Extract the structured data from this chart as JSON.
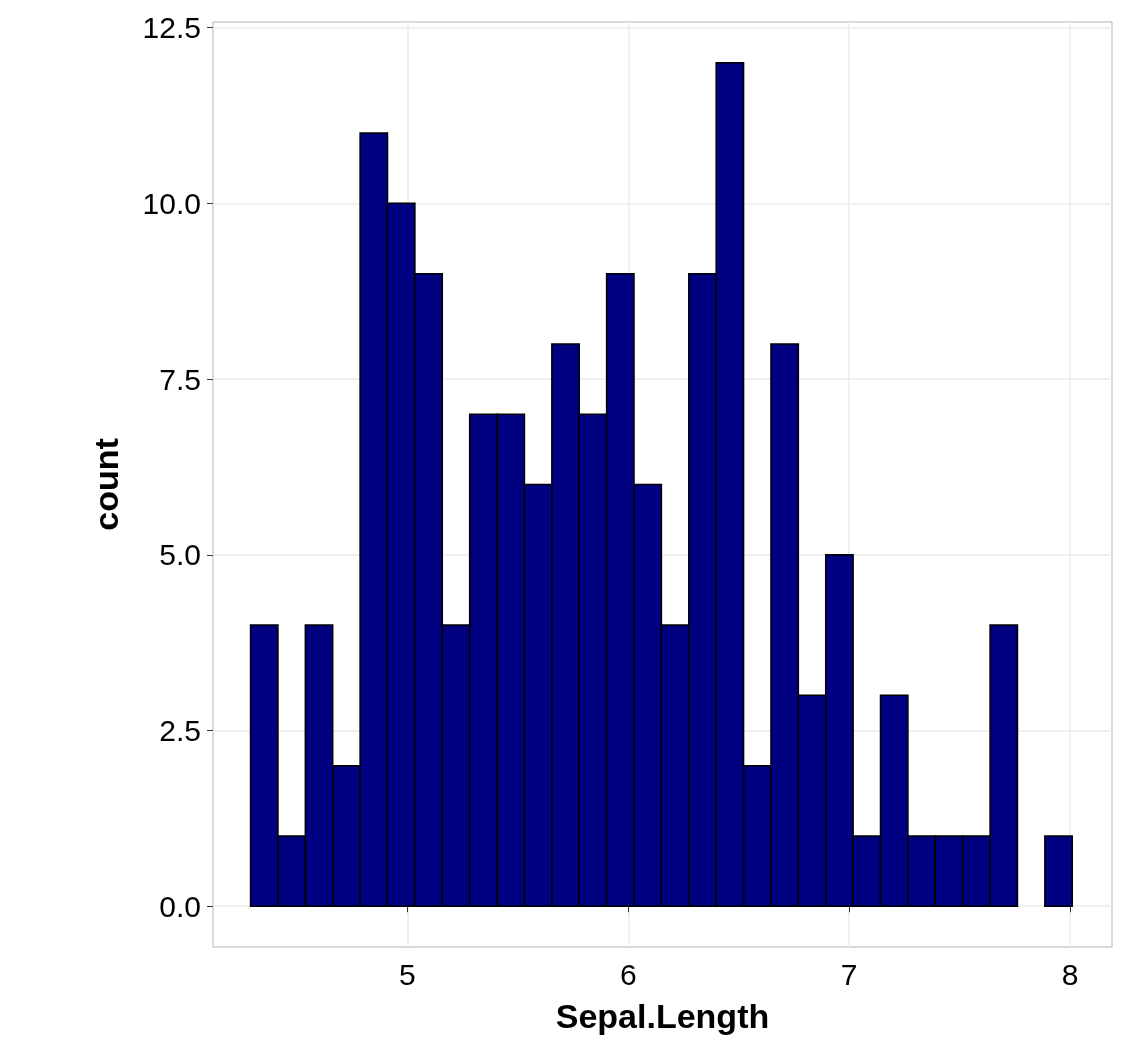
{
  "chart_data": {
    "type": "histogram",
    "xlabel": "Sepal.Length",
    "ylabel": "count",
    "color": "#000080",
    "bins": [
      4.29,
      4.414,
      4.538,
      4.662,
      4.786,
      4.91,
      5.034,
      5.158,
      5.282,
      5.406,
      5.53,
      5.654,
      5.778,
      5.902,
      6.026,
      6.15,
      6.274,
      6.398,
      6.522,
      6.646,
      6.77,
      6.894,
      7.018,
      7.142,
      7.266,
      7.39,
      7.514,
      7.638,
      7.762,
      7.886,
      8.01
    ],
    "values": [
      4,
      1,
      4,
      2,
      11,
      10,
      9,
      4,
      7,
      7,
      6,
      8,
      7,
      9,
      6,
      4,
      9,
      12,
      2,
      8,
      3,
      5,
      1,
      3,
      1,
      1,
      1,
      4,
      0,
      1
    ],
    "xlim": [
      4.12,
      8.19
    ],
    "xticks": [
      5,
      6,
      7,
      8
    ],
    "ylim": [
      -0.58,
      12.58
    ],
    "yticks": [
      {
        "value": 0,
        "label": "0.0"
      },
      {
        "value": 2.5,
        "label": "2.5"
      },
      {
        "value": 5,
        "label": "5.0"
      },
      {
        "value": 7.5,
        "label": "7.5"
      },
      {
        "value": 10,
        "label": "10.0"
      },
      {
        "value": 12.5,
        "label": "12.5"
      }
    ],
    "grid": true
  }
}
